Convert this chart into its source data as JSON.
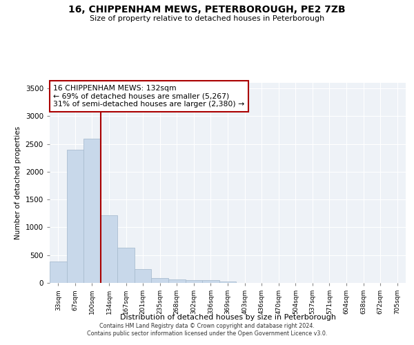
{
  "title": "16, CHIPPENHAM MEWS, PETERBOROUGH, PE2 7ZB",
  "subtitle": "Size of property relative to detached houses in Peterborough",
  "xlabel": "Distribution of detached houses by size in Peterborough",
  "ylabel": "Number of detached properties",
  "categories": [
    "33sqm",
    "67sqm",
    "100sqm",
    "134sqm",
    "167sqm",
    "201sqm",
    "235sqm",
    "268sqm",
    "302sqm",
    "336sqm",
    "369sqm",
    "403sqm",
    "436sqm",
    "470sqm",
    "504sqm",
    "537sqm",
    "571sqm",
    "604sqm",
    "638sqm",
    "672sqm",
    "705sqm"
  ],
  "values": [
    390,
    2400,
    2600,
    1220,
    630,
    250,
    90,
    60,
    55,
    45,
    30,
    0,
    0,
    0,
    0,
    0,
    0,
    0,
    0,
    0,
    0
  ],
  "bar_color": "#c8d8ea",
  "bar_edge_color": "#aabdd0",
  "vline_color": "#aa0000",
  "vline_x_index": 3,
  "annotation_text": "16 CHIPPENHAM MEWS: 132sqm\n← 69% of detached houses are smaller (5,267)\n31% of semi-detached houses are larger (2,380) →",
  "annotation_box_color": "#ffffff",
  "annotation_box_edge_color": "#aa0000",
  "ylim": [
    0,
    3600
  ],
  "yticks": [
    0,
    500,
    1000,
    1500,
    2000,
    2500,
    3000,
    3500
  ],
  "plot_bg_color": "#eef2f7",
  "grid_color": "#ffffff",
  "footer_line1": "Contains HM Land Registry data © Crown copyright and database right 2024.",
  "footer_line2": "Contains public sector information licensed under the Open Government Licence v3.0."
}
